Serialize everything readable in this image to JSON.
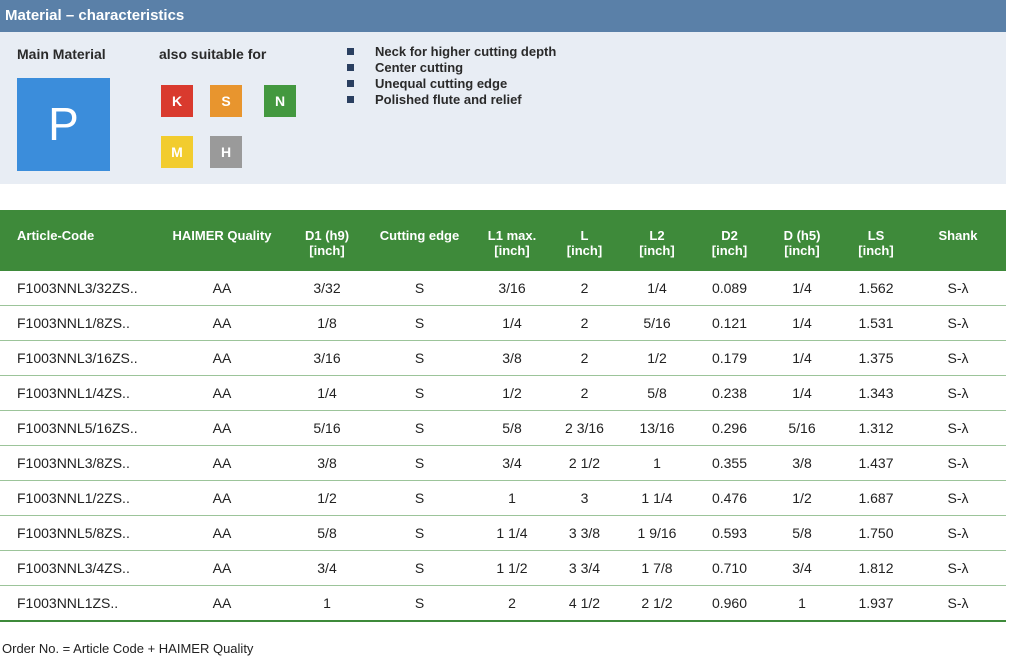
{
  "title": "Material – characteristics",
  "main_material_label": "Main Material",
  "also_suitable_label": "also suitable for",
  "main_material": {
    "letter": "P",
    "color": "#3b8ddb"
  },
  "suitable": [
    {
      "letter": "K",
      "color": "#d93a2e"
    },
    {
      "letter": "S",
      "color": "#e8952e"
    },
    {
      "letter": "N",
      "color": "#43983f"
    },
    {
      "letter": "M",
      "color": "#f2cc2e"
    },
    {
      "letter": "H",
      "color": "#9a9a9a"
    }
  ],
  "features": [
    "Neck for higher cutting depth",
    "Center cutting",
    "Unequal cutting edge",
    "Polished flute and relief"
  ],
  "table": {
    "headers": [
      {
        "line1": "Article-Code",
        "line2": ""
      },
      {
        "line1": "HAIMER Quality",
        "line2": ""
      },
      {
        "line1": "D1 (h9)",
        "line2": "[inch]"
      },
      {
        "line1": "Cutting edge",
        "line2": ""
      },
      {
        "line1": "L1 max.",
        "line2": "[inch]"
      },
      {
        "line1": "L",
        "line2": "[inch]"
      },
      {
        "line1": "L2",
        "line2": "[inch]"
      },
      {
        "line1": "D2",
        "line2": "[inch]"
      },
      {
        "line1": "D (h5)",
        "line2": "[inch]"
      },
      {
        "line1": "LS",
        "line2": "[inch]"
      },
      {
        "line1": "Shank",
        "line2": ""
      }
    ],
    "rows": [
      [
        "F1003NNL3/32ZS..",
        "AA",
        "3/32",
        "S",
        "3/16",
        "2",
        "1/4",
        "0.089",
        "1/4",
        "1.562",
        "S-λ"
      ],
      [
        "F1003NNL1/8ZS..",
        "AA",
        "1/8",
        "S",
        "1/4",
        "2",
        "5/16",
        "0.121",
        "1/4",
        "1.531",
        "S-λ"
      ],
      [
        "F1003NNL3/16ZS..",
        "AA",
        "3/16",
        "S",
        "3/8",
        "2",
        "1/2",
        "0.179",
        "1/4",
        "1.375",
        "S-λ"
      ],
      [
        "F1003NNL1/4ZS..",
        "AA",
        "1/4",
        "S",
        "1/2",
        "2",
        "5/8",
        "0.238",
        "1/4",
        "1.343",
        "S-λ"
      ],
      [
        "F1003NNL5/16ZS..",
        "AA",
        "5/16",
        "S",
        "5/8",
        "2 3/16",
        "13/16",
        "0.296",
        "5/16",
        "1.312",
        "S-λ"
      ],
      [
        "F1003NNL3/8ZS..",
        "AA",
        "3/8",
        "S",
        "3/4",
        "2 1/2",
        "1",
        "0.355",
        "3/8",
        "1.437",
        "S-λ"
      ],
      [
        "F1003NNL1/2ZS..",
        "AA",
        "1/2",
        "S",
        "1",
        "3",
        "1 1/4",
        "0.476",
        "1/2",
        "1.687",
        "S-λ"
      ],
      [
        "F1003NNL5/8ZS..",
        "AA",
        "5/8",
        "S",
        "1 1/4",
        "3 3/8",
        "1 9/16",
        "0.593",
        "5/8",
        "1.750",
        "S-λ"
      ],
      [
        "F1003NNL3/4ZS..",
        "AA",
        "3/4",
        "S",
        "1 1/2",
        "3 3/4",
        "1 7/8",
        "0.710",
        "3/4",
        "1.812",
        "S-λ"
      ],
      [
        "F1003NNL1ZS..",
        "AA",
        "1",
        "S",
        "2",
        "4 1/2",
        "2 1/2",
        "0.960",
        "1",
        "1.937",
        "S-λ"
      ]
    ]
  },
  "footer": "Order No. = Article Code + HAIMER Quality"
}
